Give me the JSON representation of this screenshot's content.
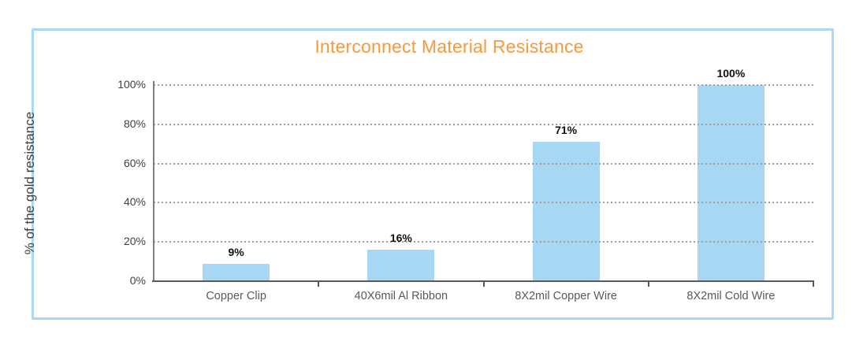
{
  "title": "Interconnect Material Resistance",
  "colors": {
    "title": "#f8993c",
    "bar_fill": "#a7d7f3",
    "frame_border": "#abd8f2",
    "gridline": "#9e9e9e",
    "y_axis_line": "#7f7f7f",
    "x_axis_line": "#595959",
    "category_label": "#595959",
    "y_tick_label": "#404040",
    "value_label": "#111111"
  },
  "chart_data": {
    "type": "bar",
    "title": "Interconnect Material Resistance",
    "categories": [
      "Copper Clip",
      "40X6mil Al Ribbon",
      "8X2mil Copper Wire",
      "8X2mil Cold Wire"
    ],
    "values": [
      9,
      16,
      71,
      100
    ],
    "value_labels": [
      "9%",
      "16%",
      "71%",
      "100%"
    ],
    "xlabel": "",
    "ylabel": "% of the gold resistance",
    "ylim": [
      0,
      100
    ],
    "ytick_step": 20,
    "ytick_labels": [
      "0%",
      "20%",
      "40%",
      "60%",
      "80%",
      "100%"
    ],
    "grid": "horizontal-dotted",
    "legend_position": "none",
    "bar_orientation": "vertical"
  }
}
